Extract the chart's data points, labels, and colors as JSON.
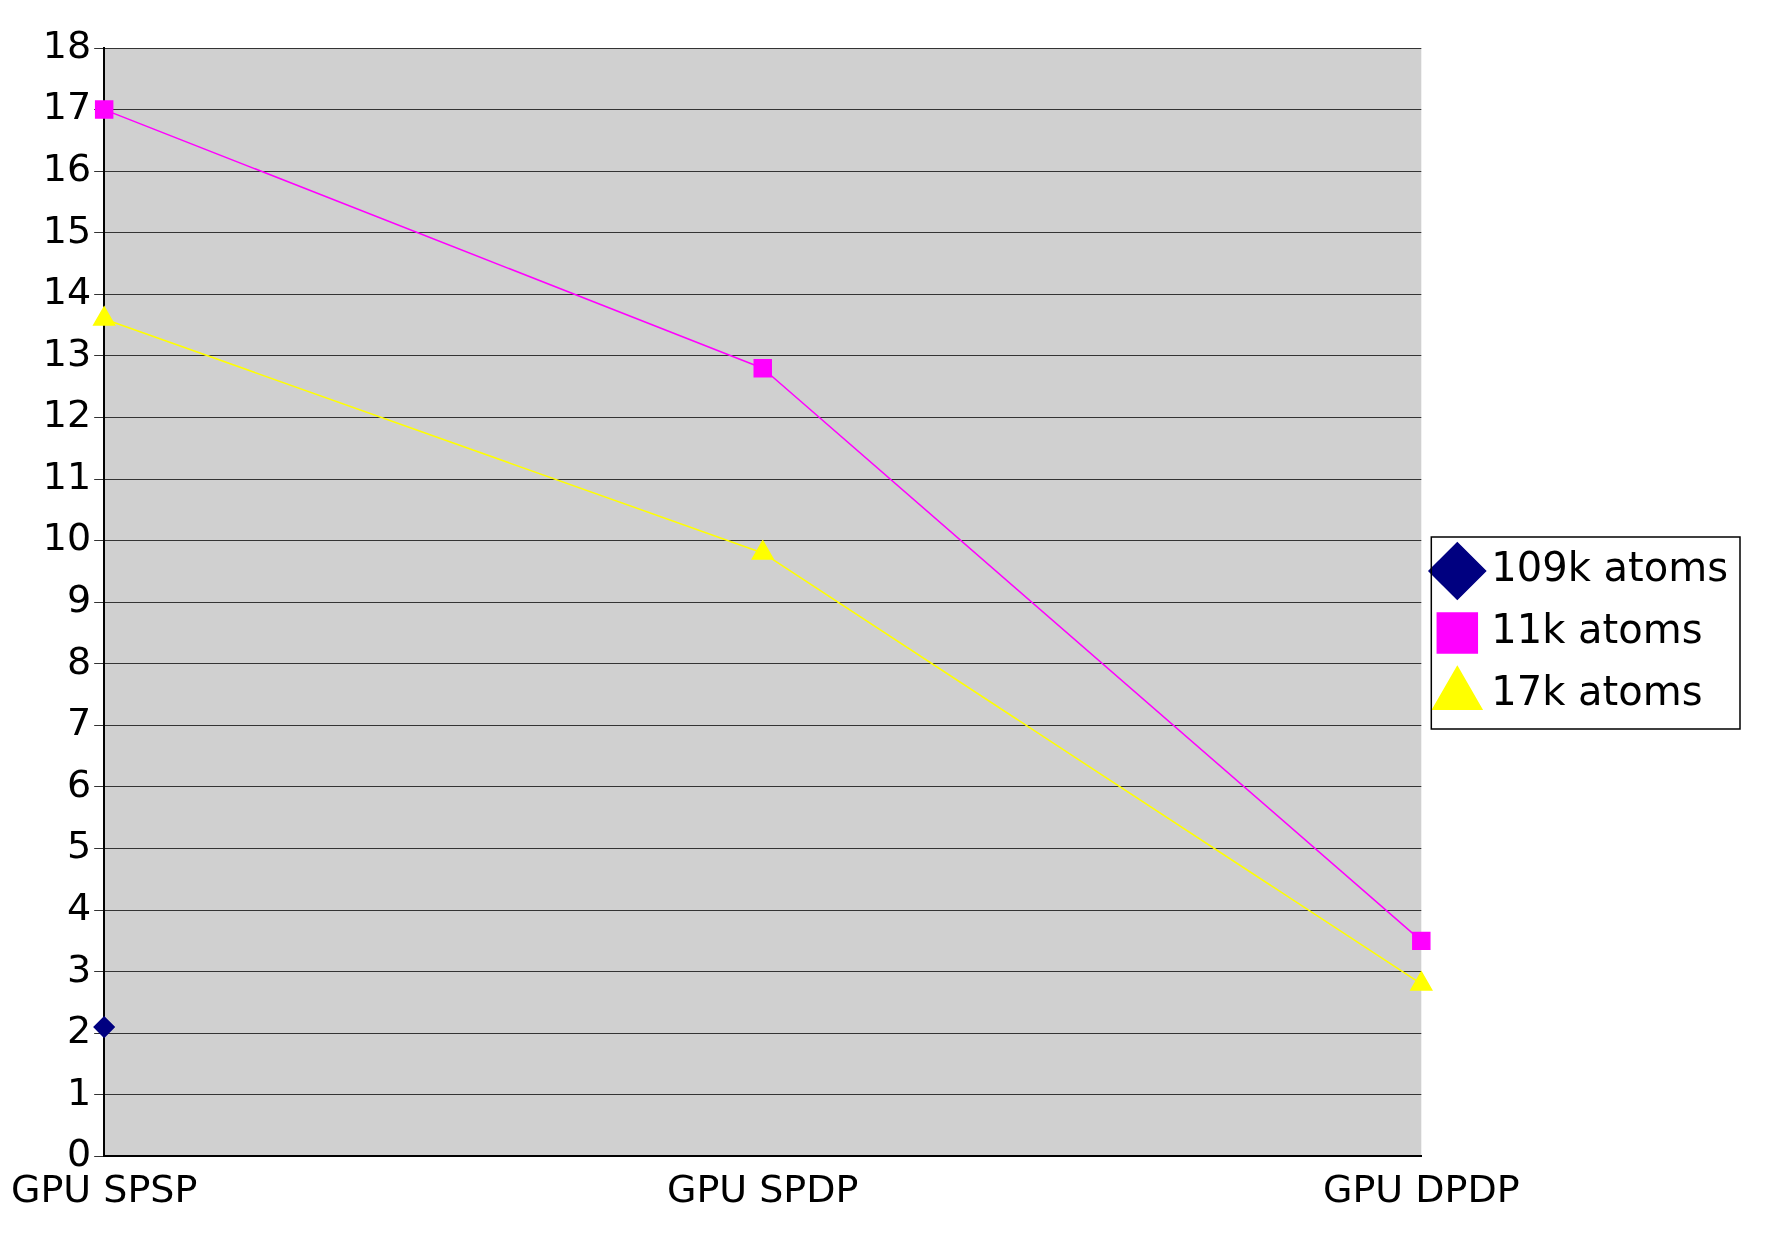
{
  "chart_data": {
    "type": "line",
    "categories": [
      "GPU SPSP",
      "GPU SPDP",
      "GPU DPDP"
    ],
    "series": [
      {
        "name": "109k atoms",
        "color": "#000080",
        "marker": "diamond",
        "values": [
          2.1,
          null,
          null
        ]
      },
      {
        "name": "11k atoms",
        "color": "#ff00ff",
        "marker": "square",
        "values": [
          17.0,
          12.8,
          3.5
        ]
      },
      {
        "name": "17k atoms",
        "color": "#ffff00",
        "marker": "triangle",
        "values": [
          13.6,
          9.8,
          2.8
        ]
      }
    ],
    "ylim": [
      0,
      18
    ],
    "yticks": [
      0,
      1,
      2,
      3,
      4,
      5,
      6,
      7,
      8,
      9,
      10,
      11,
      12,
      13,
      14,
      15,
      16,
      17,
      18
    ],
    "grid": "y",
    "legend": "right",
    "line_style": "solid"
  }
}
